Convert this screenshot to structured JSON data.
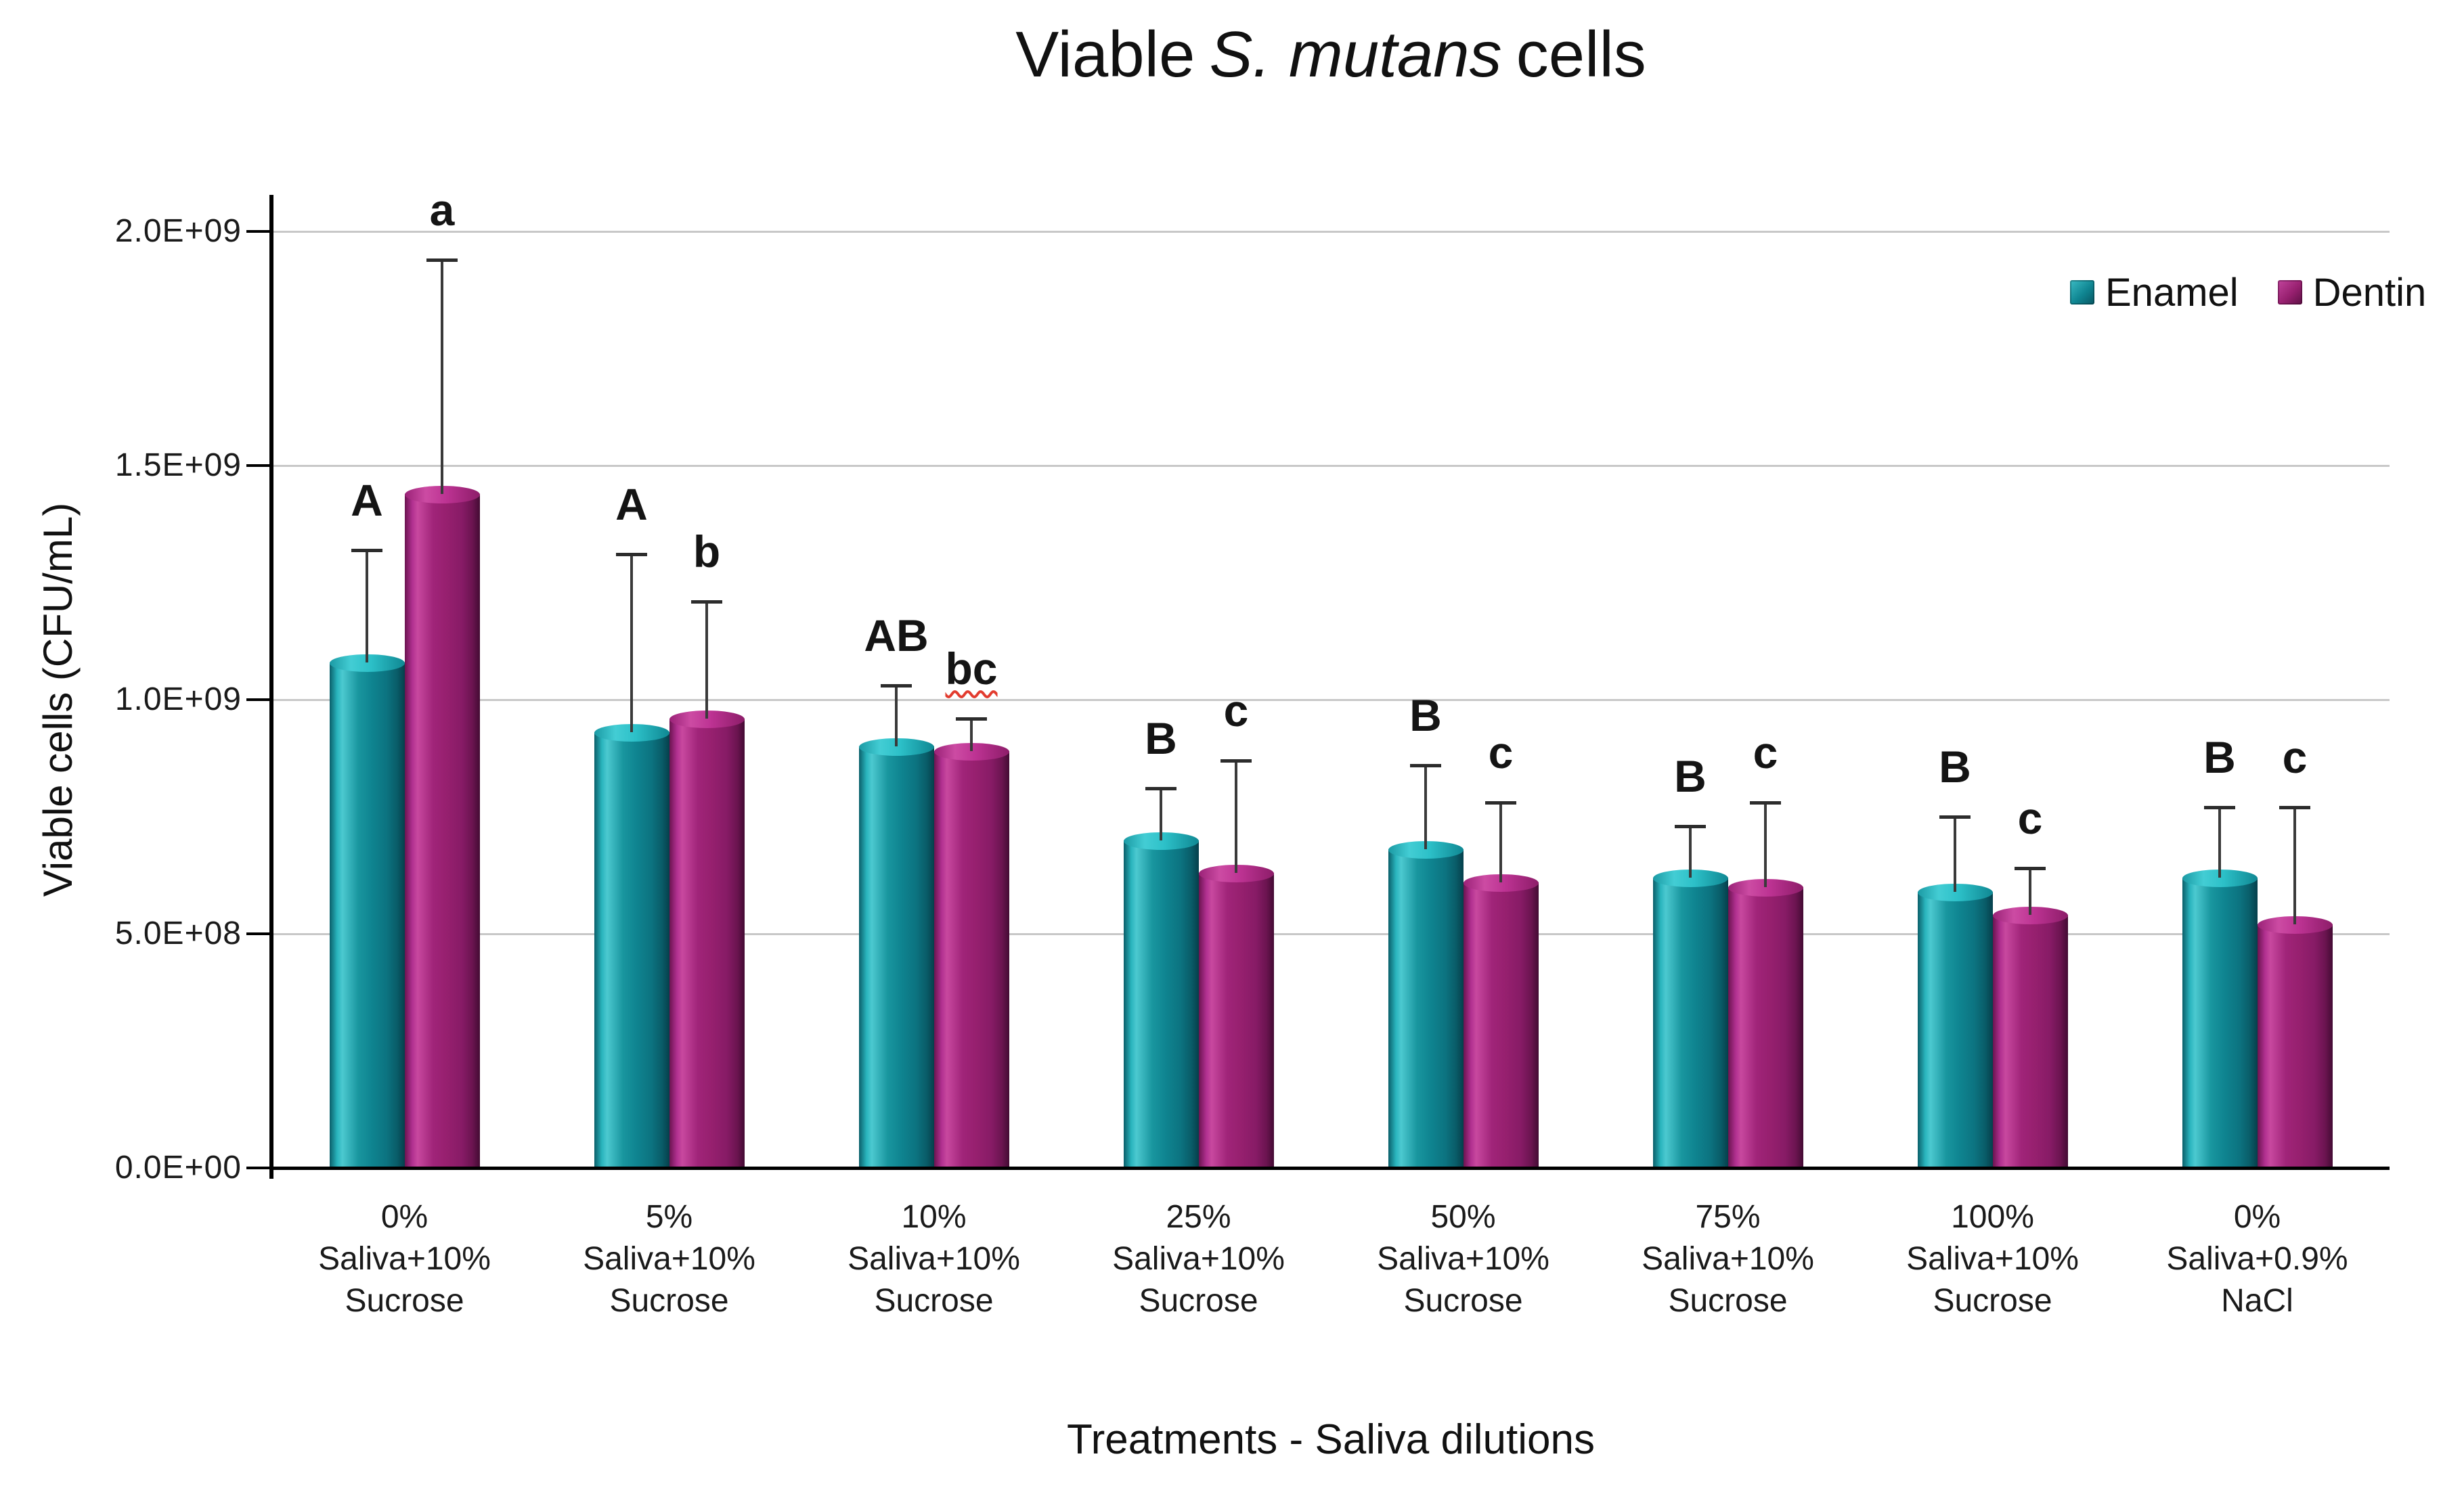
{
  "title": {
    "prefix": "Viable",
    "species": "S. mutans",
    "suffix": "cells"
  },
  "chart_data": {
    "type": "bar",
    "title": "Viable S. mutans cells",
    "xlabel": "Treatments - Saliva dilutions",
    "ylabel": "Viable cells (CFU/mL)",
    "ylim": [
      0,
      2000000000
    ],
    "grid": "horizontal",
    "legend_position": "top-right",
    "yticks": [
      {
        "label": "0.0E+00",
        "value": 0
      },
      {
        "label": "5.0E+08",
        "value": 500000000
      },
      {
        "label": "1.0E+09",
        "value": 1000000000
      },
      {
        "label": "1.5E+09",
        "value": 1500000000
      },
      {
        "label": "2.0E+09",
        "value": 2000000000
      }
    ],
    "categories": [
      [
        "0%",
        "Saliva+10%",
        "Sucrose"
      ],
      [
        "5%",
        "Saliva+10%",
        "Sucrose"
      ],
      [
        "10%",
        "Saliva+10%",
        "Sucrose"
      ],
      [
        "25%",
        "Saliva+10%",
        "Sucrose"
      ],
      [
        "50%",
        "Saliva+10%",
        "Sucrose"
      ],
      [
        "75%",
        "Saliva+10%",
        "Sucrose"
      ],
      [
        "100%",
        "Saliva+10%",
        "Sucrose"
      ],
      [
        "0%",
        "Saliva+0.9%",
        "NaCl"
      ]
    ],
    "series": [
      {
        "name": "Enamel",
        "color": "#0F8591",
        "values": [
          1080000000,
          930000000,
          900000000,
          700000000,
          680000000,
          620000000,
          590000000,
          620000000
        ],
        "error_upper": [
          1320000000,
          1310000000,
          1030000000,
          810000000,
          860000000,
          730000000,
          750000000,
          770000000
        ],
        "sig_letters": [
          "A",
          "A",
          "AB",
          "B",
          "B",
          "B",
          "B",
          "B"
        ]
      },
      {
        "name": "Dentin",
        "color": "#9B2076",
        "values": [
          1440000000,
          960000000,
          890000000,
          630000000,
          610000000,
          600000000,
          540000000,
          520000000
        ],
        "error_upper": [
          1940000000,
          1210000000,
          960000000,
          870000000,
          780000000,
          780000000,
          640000000,
          770000000
        ],
        "sig_letters": [
          "a",
          "b",
          "bc",
          "c",
          "c",
          "c",
          "c",
          "c"
        ]
      }
    ],
    "sig_letter_red_underline": {
      "series_index": 1,
      "category_index": 2
    }
  }
}
